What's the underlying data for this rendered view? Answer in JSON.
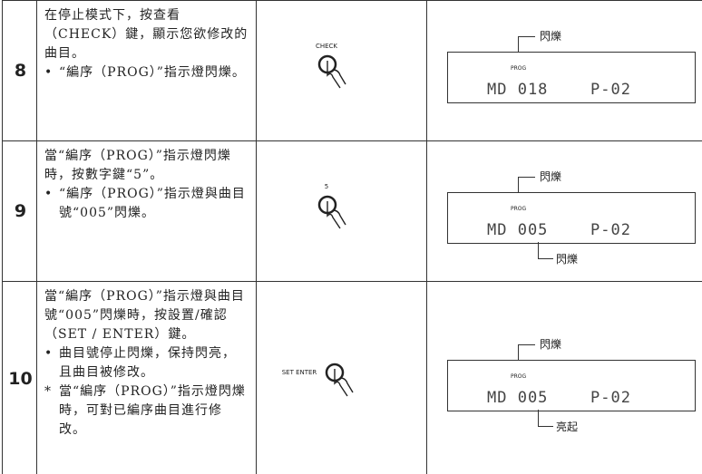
{
  "rows": [
    {
      "step": "8",
      "instruction": "在停止模式下，按查看（CHECK）鍵，顯示您欲修改的曲目。",
      "notes": [
        {
          "marker": "•",
          "text": "“編序（PROG）”指示燈閃爍。"
        }
      ],
      "button_label": "CHECK",
      "display": {
        "top_label": "閃爍",
        "indicator": "PROG",
        "segment_left": "MD 018",
        "segment_right": "P-02"
      }
    },
    {
      "step": "9",
      "instruction": "當“編序（PROG）”指示燈閃爍時，按數字鍵“5”。",
      "notes": [
        {
          "marker": "•",
          "text": "“編序（PROG）”指示燈與曲目號“005”閃爍。"
        }
      ],
      "button_label": "5",
      "display": {
        "top_label": "閃爍",
        "indicator": "PROG",
        "segment_left": "MD 005",
        "segment_right": "P-02",
        "bottom_label": "閃爍"
      }
    },
    {
      "step": "10",
      "instruction": "當“編序（PROG）”指示燈與曲目號“005”閃爍時，按設置/確認（SET / ENTER）鍵。",
      "notes": [
        {
          "marker": "•",
          "text": "曲目號停止閃爍，保持閃亮，且曲目被修改。"
        },
        {
          "marker": "*",
          "text": "當“編序（PROG）”指示燈閃爍時，可對已編序曲目進行修改。"
        }
      ],
      "button_label": "SET ENTER",
      "display": {
        "top_label": "閃爍",
        "indicator": "PROG",
        "segment_left": "MD 005",
        "segment_right": "P-02",
        "bottom_label": "亮起"
      }
    }
  ]
}
